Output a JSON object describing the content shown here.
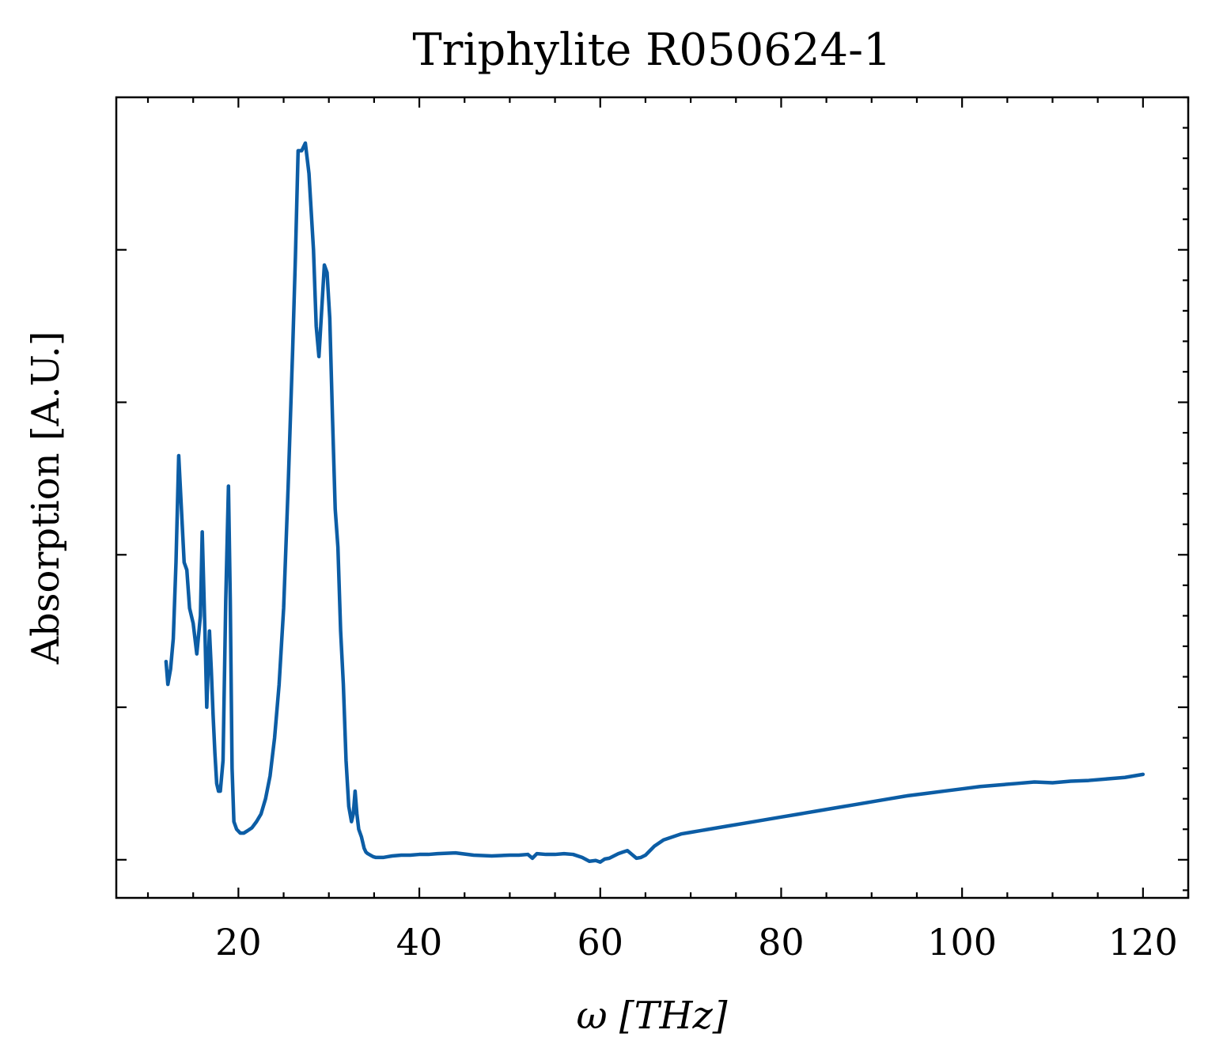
{
  "chart_data": {
    "type": "line",
    "title": "Triphylite R050624-1",
    "xlabel": "ω [THz]",
    "ylabel": "Absorption [A.U.]",
    "xlim": [
      6.5,
      125
    ],
    "ylim": [
      -0.05,
      1.0
    ],
    "x_ticks": [
      20,
      40,
      60,
      80,
      100,
      120
    ],
    "x_tick_labels": [
      "20",
      "40",
      "60",
      "80",
      "100",
      "120"
    ],
    "x_minor_step": 5,
    "y_ticks": [
      0.0,
      0.2,
      0.4,
      0.6,
      0.8
    ],
    "y_minor_step": 0.04,
    "y_tick_labels_shown": false,
    "grid": false,
    "tick_direction": "in",
    "series": [
      {
        "color": "#0c5da5",
        "x": [
          12.0,
          12.2,
          12.5,
          12.8,
          13.1,
          13.4,
          13.7,
          14.0,
          14.3,
          14.6,
          15.0,
          15.4,
          15.8,
          16.0,
          16.3,
          16.5,
          16.8,
          17.0,
          17.2,
          17.4,
          17.6,
          17.8,
          18.0,
          18.3,
          18.6,
          18.9,
          19.1,
          19.3,
          19.5,
          19.8,
          20.2,
          20.6,
          21.0,
          21.5,
          22.0,
          22.5,
          23.0,
          23.5,
          24.0,
          24.5,
          25.0,
          25.5,
          26.0,
          26.3,
          26.6,
          27.0,
          27.4,
          27.8,
          28.0,
          28.3,
          28.6,
          28.9,
          29.2,
          29.5,
          29.8,
          30.1,
          30.4,
          30.7,
          31.0,
          31.3,
          31.6,
          31.9,
          32.2,
          32.5,
          32.7,
          32.9,
          33.1,
          33.3,
          33.6,
          33.9,
          34.1,
          34.3,
          34.6,
          34.9,
          35.2,
          35.6,
          36.0,
          36.5,
          37.0,
          38.0,
          39.0,
          40.0,
          41.0,
          42.0,
          44.0,
          46.0,
          48.0,
          50.0,
          51.0,
          52.0,
          52.5,
          53.0,
          54.0,
          55.0,
          56.0,
          57.0,
          58.0,
          58.8,
          59.5,
          60.0,
          60.5,
          61.0,
          61.5,
          62.0,
          62.5,
          63.0,
          63.5,
          64.0,
          64.5,
          65.0,
          65.5,
          66.0,
          66.5,
          67.0,
          68.0,
          69.0,
          70.0,
          71.0,
          72.0,
          74.0,
          76.0,
          78.0,
          80.0,
          82.0,
          84.0,
          86.0,
          88.0,
          90.0,
          92.0,
          94.0,
          96.0,
          98.0,
          100.0,
          102.0,
          104.0,
          106.0,
          108.0,
          110.0,
          112.0,
          114.0,
          116.0,
          118.0,
          120.0
        ],
        "y": [
          0.26,
          0.23,
          0.25,
          0.29,
          0.39,
          0.53,
          0.46,
          0.39,
          0.38,
          0.33,
          0.31,
          0.27,
          0.32,
          0.43,
          0.3,
          0.2,
          0.3,
          0.25,
          0.19,
          0.14,
          0.1,
          0.09,
          0.09,
          0.13,
          0.34,
          0.49,
          0.34,
          0.12,
          0.05,
          0.04,
          0.035,
          0.035,
          0.038,
          0.042,
          0.05,
          0.06,
          0.08,
          0.11,
          0.16,
          0.23,
          0.33,
          0.49,
          0.67,
          0.79,
          0.93,
          0.93,
          0.94,
          0.9,
          0.86,
          0.8,
          0.7,
          0.66,
          0.72,
          0.78,
          0.77,
          0.71,
          0.58,
          0.46,
          0.41,
          0.3,
          0.23,
          0.13,
          0.07,
          0.05,
          0.06,
          0.09,
          0.06,
          0.04,
          0.03,
          0.015,
          0.01,
          0.008,
          0.006,
          0.004,
          0.003,
          0.003,
          0.003,
          0.004,
          0.005,
          0.006,
          0.006,
          0.007,
          0.007,
          0.008,
          0.009,
          0.006,
          0.005,
          0.006,
          0.006,
          0.007,
          0.002,
          0.008,
          0.007,
          0.007,
          0.008,
          0.007,
          0.003,
          -0.002,
          -0.001,
          -0.003,
          0.001,
          0.002,
          0.005,
          0.008,
          0.01,
          0.012,
          0.007,
          0.002,
          0.003,
          0.006,
          0.012,
          0.018,
          0.022,
          0.026,
          0.03,
          0.034,
          0.036,
          0.038,
          0.04,
          0.044,
          0.048,
          0.052,
          0.056,
          0.06,
          0.064,
          0.068,
          0.072,
          0.076,
          0.08,
          0.084,
          0.087,
          0.09,
          0.093,
          0.096,
          0.098,
          0.1,
          0.102,
          0.101,
          0.103,
          0.104,
          0.106,
          0.108,
          0.112
        ]
      }
    ]
  }
}
